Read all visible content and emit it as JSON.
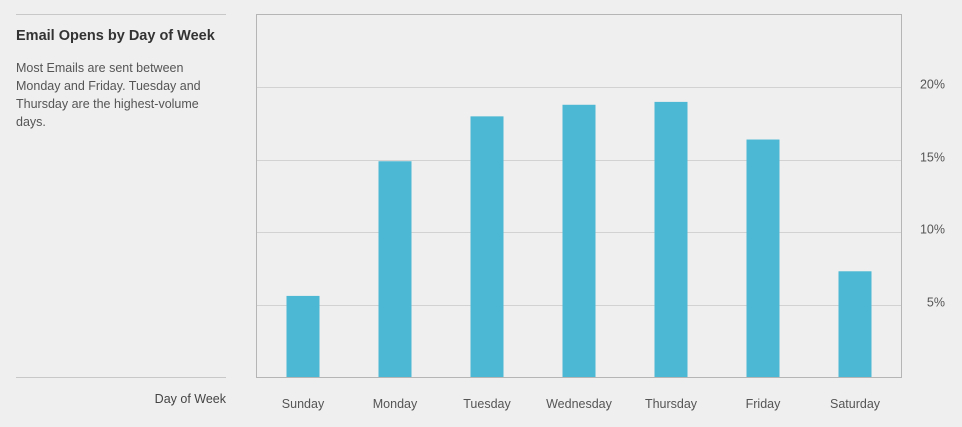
{
  "chart_data": {
    "type": "bar",
    "title": "Email Opens by Day of Week",
    "subtitle": "Most Emails are sent between Monday and Friday. Tuesday and Thursday are the highest-volume days.",
    "xlabel": "Day of Week",
    "ylabel": "",
    "categories": [
      "Sunday",
      "Monday",
      "Tuesday",
      "Wednesday",
      "Thursday",
      "Friday",
      "Saturday"
    ],
    "values": [
      5.6,
      14.9,
      18.0,
      18.8,
      19.0,
      16.4,
      7.3
    ],
    "ylim": [
      0,
      25
    ],
    "yticks": [
      5,
      10,
      15,
      20
    ],
    "ytick_labels": [
      "5%",
      "10%",
      "15%",
      "20%"
    ],
    "grid": true,
    "bar_color": "#4db8d3"
  }
}
